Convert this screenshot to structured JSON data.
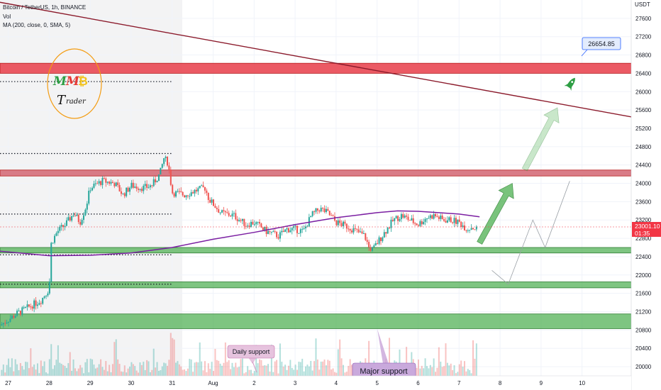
{
  "header": {
    "symbol": "Bitcoin / TetherUS, 1h, BINANCE",
    "vol": "Vol",
    "ma": "MA (200, close, 0, SMA, 5)"
  },
  "currency_label": "USDT",
  "price_badge": {
    "price": "23001.10",
    "countdown": "01:35"
  },
  "target_label": "26654.85",
  "logo": {
    "letters": [
      "M",
      "M",
      "₿"
    ],
    "word_big": "T",
    "word_small": "rader"
  },
  "callouts": {
    "daily": "Daily support",
    "major": "Major support"
  },
  "colors": {
    "resistance": "#e8434e",
    "resistance_light": "#d46a76",
    "support": "#4caf50",
    "ma": "#7b1fa2",
    "trendline": "#8b1a2b",
    "up": "#26a69a",
    "down": "#ef5350",
    "arrow": "#4caf50",
    "badge": "#f23645"
  },
  "chart_data": {
    "type": "candlestick",
    "y_axis": {
      "ylim": [
        19800,
        28000
      ],
      "ticks": [
        27600,
        27200,
        26800,
        26400,
        26000,
        25600,
        25200,
        24800,
        24400,
        24000,
        23600,
        23200,
        22800,
        22400,
        22000,
        21600,
        21200,
        20800,
        20400,
        20000
      ]
    },
    "x_axis": {
      "ticks": [
        "27",
        "28",
        "29",
        "30",
        "31",
        "Aug",
        "2",
        "3",
        "4",
        "5",
        "6",
        "7",
        "8",
        "9",
        "10"
      ],
      "days_from_27": [
        0,
        1,
        2,
        3,
        4,
        5,
        6,
        7,
        8,
        9,
        10,
        11,
        12,
        13,
        14
      ],
      "xlim_days": [
        -0.2,
        15.2
      ]
    },
    "zones": [
      {
        "kind": "resistance",
        "low": 26400,
        "high": 26620
      },
      {
        "kind": "resistance",
        "low": 24160,
        "high": 24290
      },
      {
        "kind": "support",
        "low": 22480,
        "high": 22600
      },
      {
        "kind": "support",
        "low": 21720,
        "high": 21850
      },
      {
        "kind": "support",
        "low": 20830,
        "high": 21150
      }
    ],
    "dotted_levels": [
      {
        "price": 26220,
        "to_day": 4.0
      },
      {
        "price": 24650,
        "to_day": 4.0
      },
      {
        "price": 23330,
        "to_day": 4.0
      },
      {
        "price": 22440,
        "to_day": 4.0
      },
      {
        "price": 21800,
        "to_day": 4.0
      }
    ],
    "trendline": {
      "start": {
        "day": -0.2,
        "price": 27950
      },
      "end": {
        "day": 15.2,
        "price": 25450
      }
    },
    "current_price": 23001.1,
    "target_price": 26654.85,
    "price_path": [
      [
        -0.2,
        20900
      ],
      [
        0.2,
        21150
      ],
      [
        0.5,
        21300
      ],
      [
        0.8,
        21450
      ],
      [
        1.0,
        21700
      ],
      [
        1.05,
        22700
      ],
      [
        1.2,
        22950
      ],
      [
        1.4,
        23100
      ],
      [
        1.6,
        23350
      ],
      [
        1.75,
        23150
      ],
      [
        1.9,
        23500
      ],
      [
        2.0,
        23900
      ],
      [
        2.3,
        24050
      ],
      [
        2.6,
        24000
      ],
      [
        2.8,
        23750
      ],
      [
        3.0,
        23950
      ],
      [
        3.3,
        23900
      ],
      [
        3.5,
        23950
      ],
      [
        3.7,
        24200
      ],
      [
        3.8,
        24550
      ],
      [
        3.9,
        24450
      ],
      [
        4.0,
        23800
      ],
      [
        4.3,
        23750
      ],
      [
        4.6,
        23850
      ],
      [
        4.8,
        23900
      ],
      [
        4.9,
        23650
      ],
      [
        5.2,
        23350
      ],
      [
        5.5,
        23300
      ],
      [
        5.8,
        23100
      ],
      [
        6.0,
        23150
      ],
      [
        6.3,
        22950
      ],
      [
        6.6,
        22850
      ],
      [
        6.8,
        23000
      ],
      [
        7.0,
        23000
      ],
      [
        7.2,
        22950
      ],
      [
        7.4,
        23300
      ],
      [
        7.6,
        23450
      ],
      [
        7.8,
        23350
      ],
      [
        8.0,
        23150
      ],
      [
        8.3,
        23050
      ],
      [
        8.5,
        22950
      ],
      [
        8.7,
        22850
      ],
      [
        8.8,
        22600
      ],
      [
        8.9,
        22550
      ],
      [
        9.0,
        22700
      ],
      [
        9.2,
        22950
      ],
      [
        9.4,
        23200
      ],
      [
        9.6,
        23300
      ],
      [
        9.8,
        23200
      ],
      [
        10.0,
        23100
      ],
      [
        10.2,
        23250
      ],
      [
        10.4,
        23300
      ],
      [
        10.6,
        23200
      ],
      [
        10.8,
        23200
      ],
      [
        11.0,
        23150
      ],
      [
        11.2,
        23000
      ],
      [
        11.3,
        23050
      ],
      [
        11.45,
        23000
      ]
    ],
    "ma_path": [
      [
        -0.2,
        22520
      ],
      [
        1.0,
        22420
      ],
      [
        2.0,
        22430
      ],
      [
        3.0,
        22480
      ],
      [
        4.0,
        22600
      ],
      [
        5.0,
        22780
      ],
      [
        6.0,
        22930
      ],
      [
        7.0,
        23100
      ],
      [
        8.0,
        23250
      ],
      [
        9.0,
        23360
      ],
      [
        9.5,
        23400
      ],
      [
        10.0,
        23390
      ],
      [
        10.5,
        23360
      ],
      [
        11.0,
        23330
      ],
      [
        11.5,
        23270
      ]
    ],
    "projection": [
      [
        11.8,
        22100
      ],
      [
        12.2,
        21800
      ],
      [
        12.8,
        23200
      ],
      [
        13.1,
        22600
      ],
      [
        13.7,
        24050
      ]
    ],
    "arrows": [
      {
        "from": {
          "day": 11.5,
          "price": 22700
        },
        "to": {
          "day": 12.3,
          "price": 24000
        }
      },
      {
        "from": {
          "day": 12.6,
          "price": 24300
        },
        "to": {
          "day": 13.4,
          "price": 25650
        }
      }
    ]
  }
}
